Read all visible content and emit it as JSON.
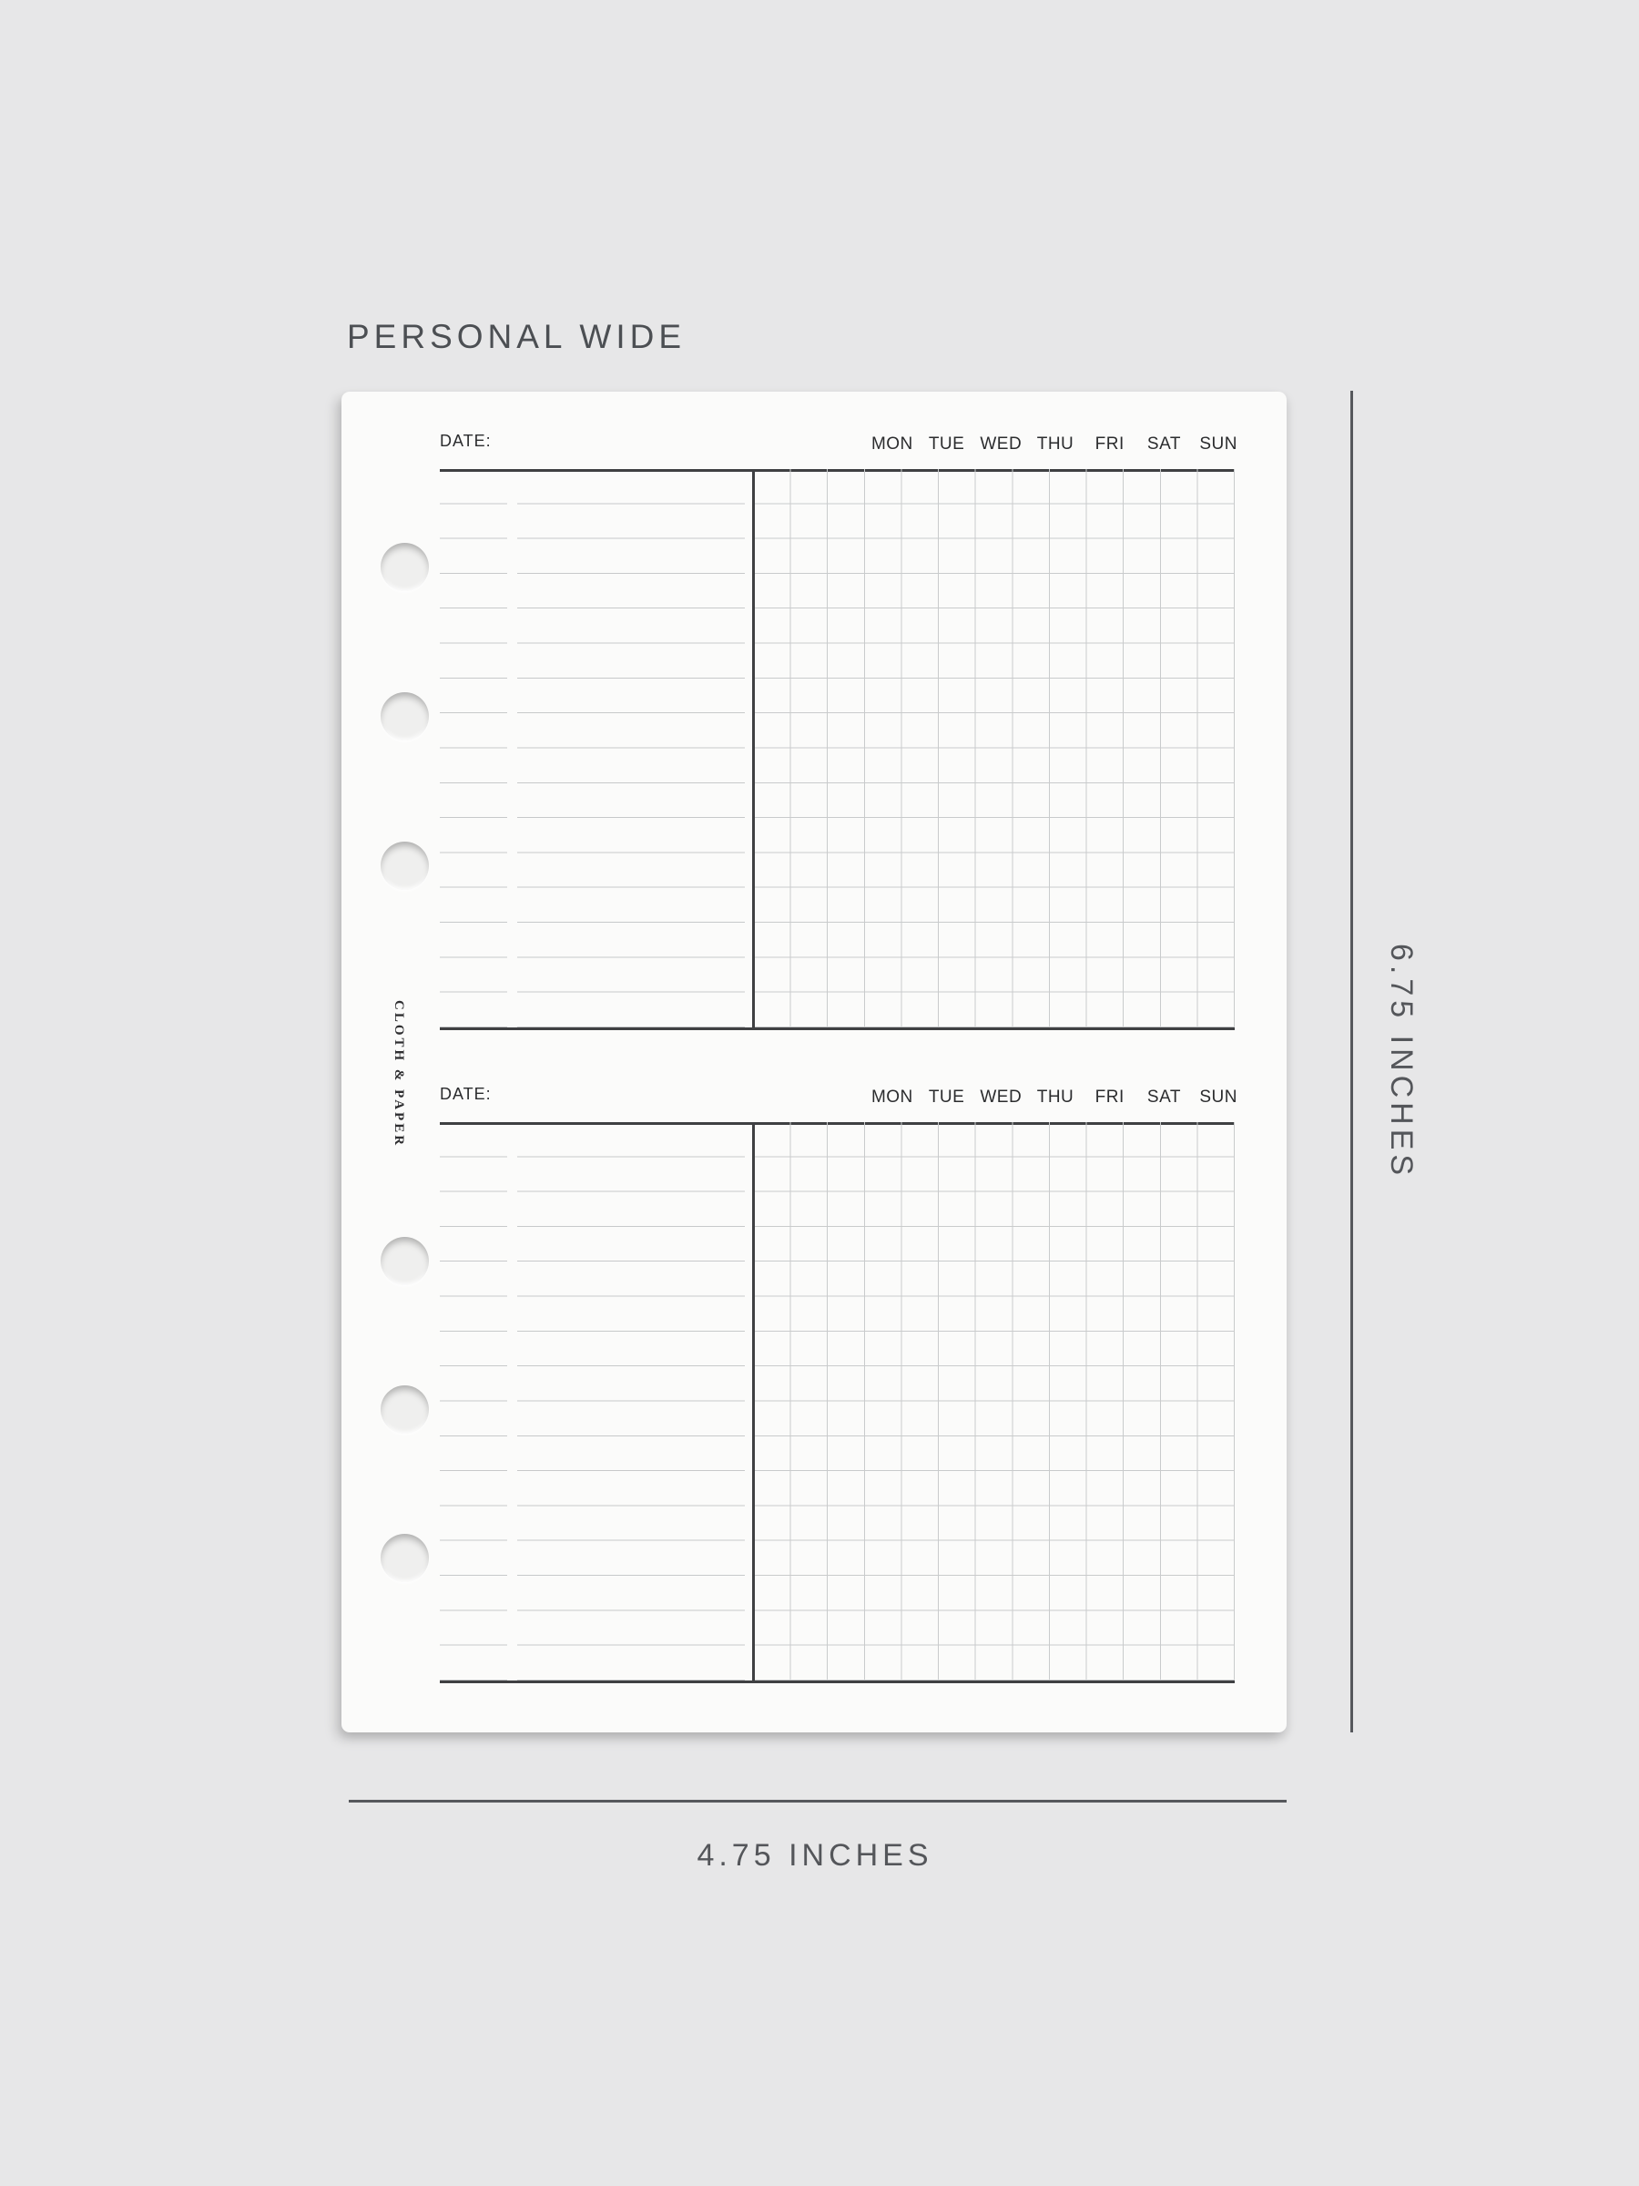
{
  "title": "PERSONAL WIDE",
  "brand": "CLOTH & PAPER",
  "planner": {
    "sections": [
      {
        "date_label": "DATE:",
        "days": [
          "MON",
          "TUE",
          "WED",
          "THU",
          "FRI",
          "SAT",
          "SUN"
        ]
      },
      {
        "date_label": "DATE:",
        "days": [
          "MON",
          "TUE",
          "WED",
          "THU",
          "FRI",
          "SAT",
          "SUN"
        ]
      }
    ]
  },
  "dimensions": {
    "height_label": "6.75 INCHES",
    "width_label": "4.75 INCHES"
  },
  "colors": {
    "background": "#e7e7e8",
    "page": "#fbfbfa",
    "rule_dark": "#3f4042",
    "grid_line": "#c9cbcc",
    "text_dark": "#2b2c2e",
    "annotation": "#54565a"
  }
}
